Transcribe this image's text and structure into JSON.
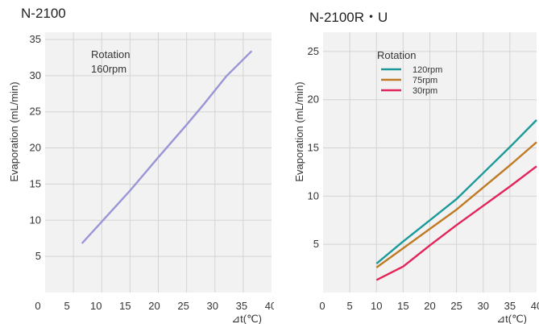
{
  "chart_data": [
    {
      "type": "line",
      "title": "N-2100",
      "xlabel": "⊿t(℃)",
      "ylabel": "Evaporation (mL/min)",
      "xlim": [
        0,
        40
      ],
      "ylim": [
        0,
        36
      ],
      "xticks": [
        0,
        5,
        10,
        15,
        20,
        25,
        30,
        35,
        40
      ],
      "yticks": [
        5,
        10,
        15,
        20,
        25,
        30,
        35
      ],
      "grid": true,
      "annotation": [
        "Rotation",
        "160rpm"
      ],
      "series": [
        {
          "name": "",
          "color": "#9a95d6",
          "points": [
            [
              6.5,
              6.8
            ],
            [
              10,
              9.8
            ],
            [
              15,
              14.1
            ],
            [
              20,
              18.7
            ],
            [
              25,
              23.2
            ],
            [
              28,
              26
            ],
            [
              32,
              29.9
            ],
            [
              36.5,
              33.4
            ]
          ]
        }
      ]
    },
    {
      "type": "line",
      "title": "N-2100R・U",
      "xlabel": "⊿t(℃)",
      "ylabel": "Evaporation (mL/min)",
      "xlim": [
        0,
        40
      ],
      "ylim": [
        0,
        27
      ],
      "xticks": [
        0,
        5,
        10,
        15,
        20,
        25,
        30,
        35,
        40
      ],
      "yticks": [
        5,
        10,
        15,
        20,
        25
      ],
      "grid": true,
      "legend_title": "Rotation",
      "legend_position": "top-left",
      "series": [
        {
          "name": "120rpm",
          "color": "#1c9a9a",
          "points": [
            [
              10,
              3.0
            ],
            [
              15,
              5.3
            ],
            [
              20,
              7.5
            ],
            [
              25,
              9.7
            ],
            [
              30,
              12.4
            ],
            [
              35,
              15.1
            ],
            [
              40,
              17.9
            ]
          ]
        },
        {
          "name": "75rpm",
          "color": "#c07a24",
          "points": [
            [
              10,
              2.6
            ],
            [
              15,
              4.6
            ],
            [
              20,
              6.6
            ],
            [
              25,
              8.6
            ],
            [
              30,
              10.9
            ],
            [
              35,
              13.2
            ],
            [
              40,
              15.6
            ]
          ]
        },
        {
          "name": "30rpm",
          "color": "#e2245a",
          "points": [
            [
              10,
              1.3
            ],
            [
              15,
              2.7
            ],
            [
              20,
              4.9
            ],
            [
              25,
              7.0
            ],
            [
              30,
              9.0
            ],
            [
              35,
              11.0
            ],
            [
              40,
              13.1
            ]
          ]
        }
      ]
    }
  ]
}
